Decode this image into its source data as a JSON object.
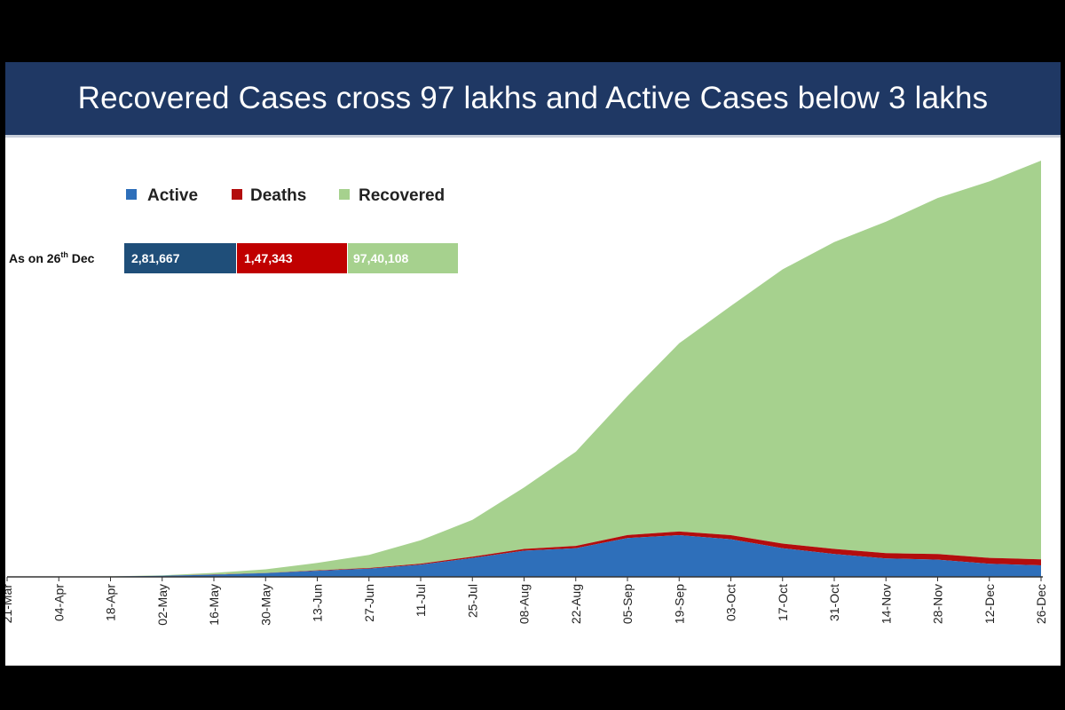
{
  "title": "Recovered Cases cross 97 lakhs and Active Cases below 3 lakhs",
  "colors": {
    "active": "#2e6fba",
    "deaths": "#b30d0d",
    "recovered": "#a6d18e",
    "active_box": "#1f4e79",
    "title_bg": "#1f3864"
  },
  "summary": {
    "as_on_label": "As on 26",
    "as_on_sup": "th",
    "as_on_suffix": " Dec",
    "active": "2,81,667",
    "deaths": "1,47,343",
    "recovered": "97,40,108"
  },
  "chart_data": {
    "type": "area",
    "stacked": true,
    "title": "Recovered Cases cross 97 lakhs and Active Cases below 3 lakhs",
    "legend": [
      "Active",
      "Deaths",
      "Recovered"
    ],
    "legend_position": "top-left",
    "grid": false,
    "y_axis_visible": false,
    "x_ticks": [
      "21-Mar",
      "04-Apr",
      "18-Apr",
      "02-May",
      "16-May",
      "30-May",
      "13-Jun",
      "27-Jun",
      "11-Jul",
      "25-Jul",
      "08-Aug",
      "22-Aug",
      "05-Sep",
      "19-Sep",
      "03-Oct",
      "17-Oct",
      "31-Oct",
      "14-Nov",
      "28-Nov",
      "12-Dec",
      "26-Dec"
    ],
    "ylim": [
      0,
      10300000
    ],
    "series": [
      {
        "name": "Active",
        "values": [
          300,
          2000,
          10000,
          26000,
          55000,
          90000,
          150000,
          200000,
          300000,
          460000,
          640000,
          700000,
          950000,
          1020000,
          920000,
          700000,
          560000,
          450000,
          420000,
          320000,
          281667
        ]
      },
      {
        "name": "Deaths",
        "values": [
          5,
          100,
          500,
          1300,
          3000,
          5200,
          9500,
          16000,
          23000,
          32000,
          43000,
          57000,
          72000,
          87000,
          100000,
          113000,
          122000,
          130000,
          137000,
          143000,
          147343
        ]
      },
      {
        "name": "Recovered",
        "values": [
          50,
          300,
          2500,
          12000,
          40000,
          90000,
          180000,
          320000,
          570000,
          900000,
          1500000,
          2300000,
          3400000,
          4600000,
          5600000,
          6700000,
          7500000,
          8100000,
          8700000,
          9200000,
          9740108
        ]
      }
    ]
  }
}
